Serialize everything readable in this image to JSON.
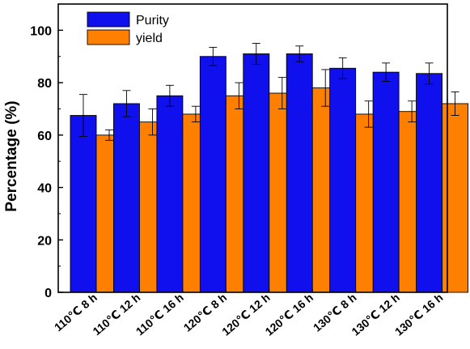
{
  "chart_data": {
    "type": "bar",
    "title": "",
    "xlabel": "",
    "ylabel": "Percentage (%)",
    "ylim": [
      0,
      110
    ],
    "yticks": [
      0,
      20,
      40,
      60,
      80,
      100
    ],
    "grid": false,
    "legend_position": "top-left",
    "categories": [
      "110℃ 8 h",
      "110℃ 12 h",
      "110℃ 16 h",
      "120℃ 8 h",
      "120℃ 12 h",
      "120℃ 16 h",
      "130℃ 8 h",
      "130℃ 12 h",
      "130℃ 16 h"
    ],
    "series": [
      {
        "name": "Purity",
        "color": "#1010EE",
        "values": [
          67.5,
          72.0,
          75.0,
          90.0,
          91.0,
          91.0,
          85.5,
          84.0,
          83.5
        ],
        "errors": [
          8.0,
          5.0,
          4.0,
          3.5,
          4.0,
          3.0,
          4.0,
          3.5,
          4.0
        ]
      },
      {
        "name": "yield",
        "color": "#FF8000",
        "values": [
          60.0,
          65.0,
          68.0,
          75.0,
          76.0,
          78.0,
          68.0,
          69.0,
          72.0
        ],
        "errors": [
          2.0,
          5.0,
          3.0,
          5.0,
          6.0,
          7.0,
          5.0,
          4.0,
          4.5
        ]
      }
    ]
  }
}
